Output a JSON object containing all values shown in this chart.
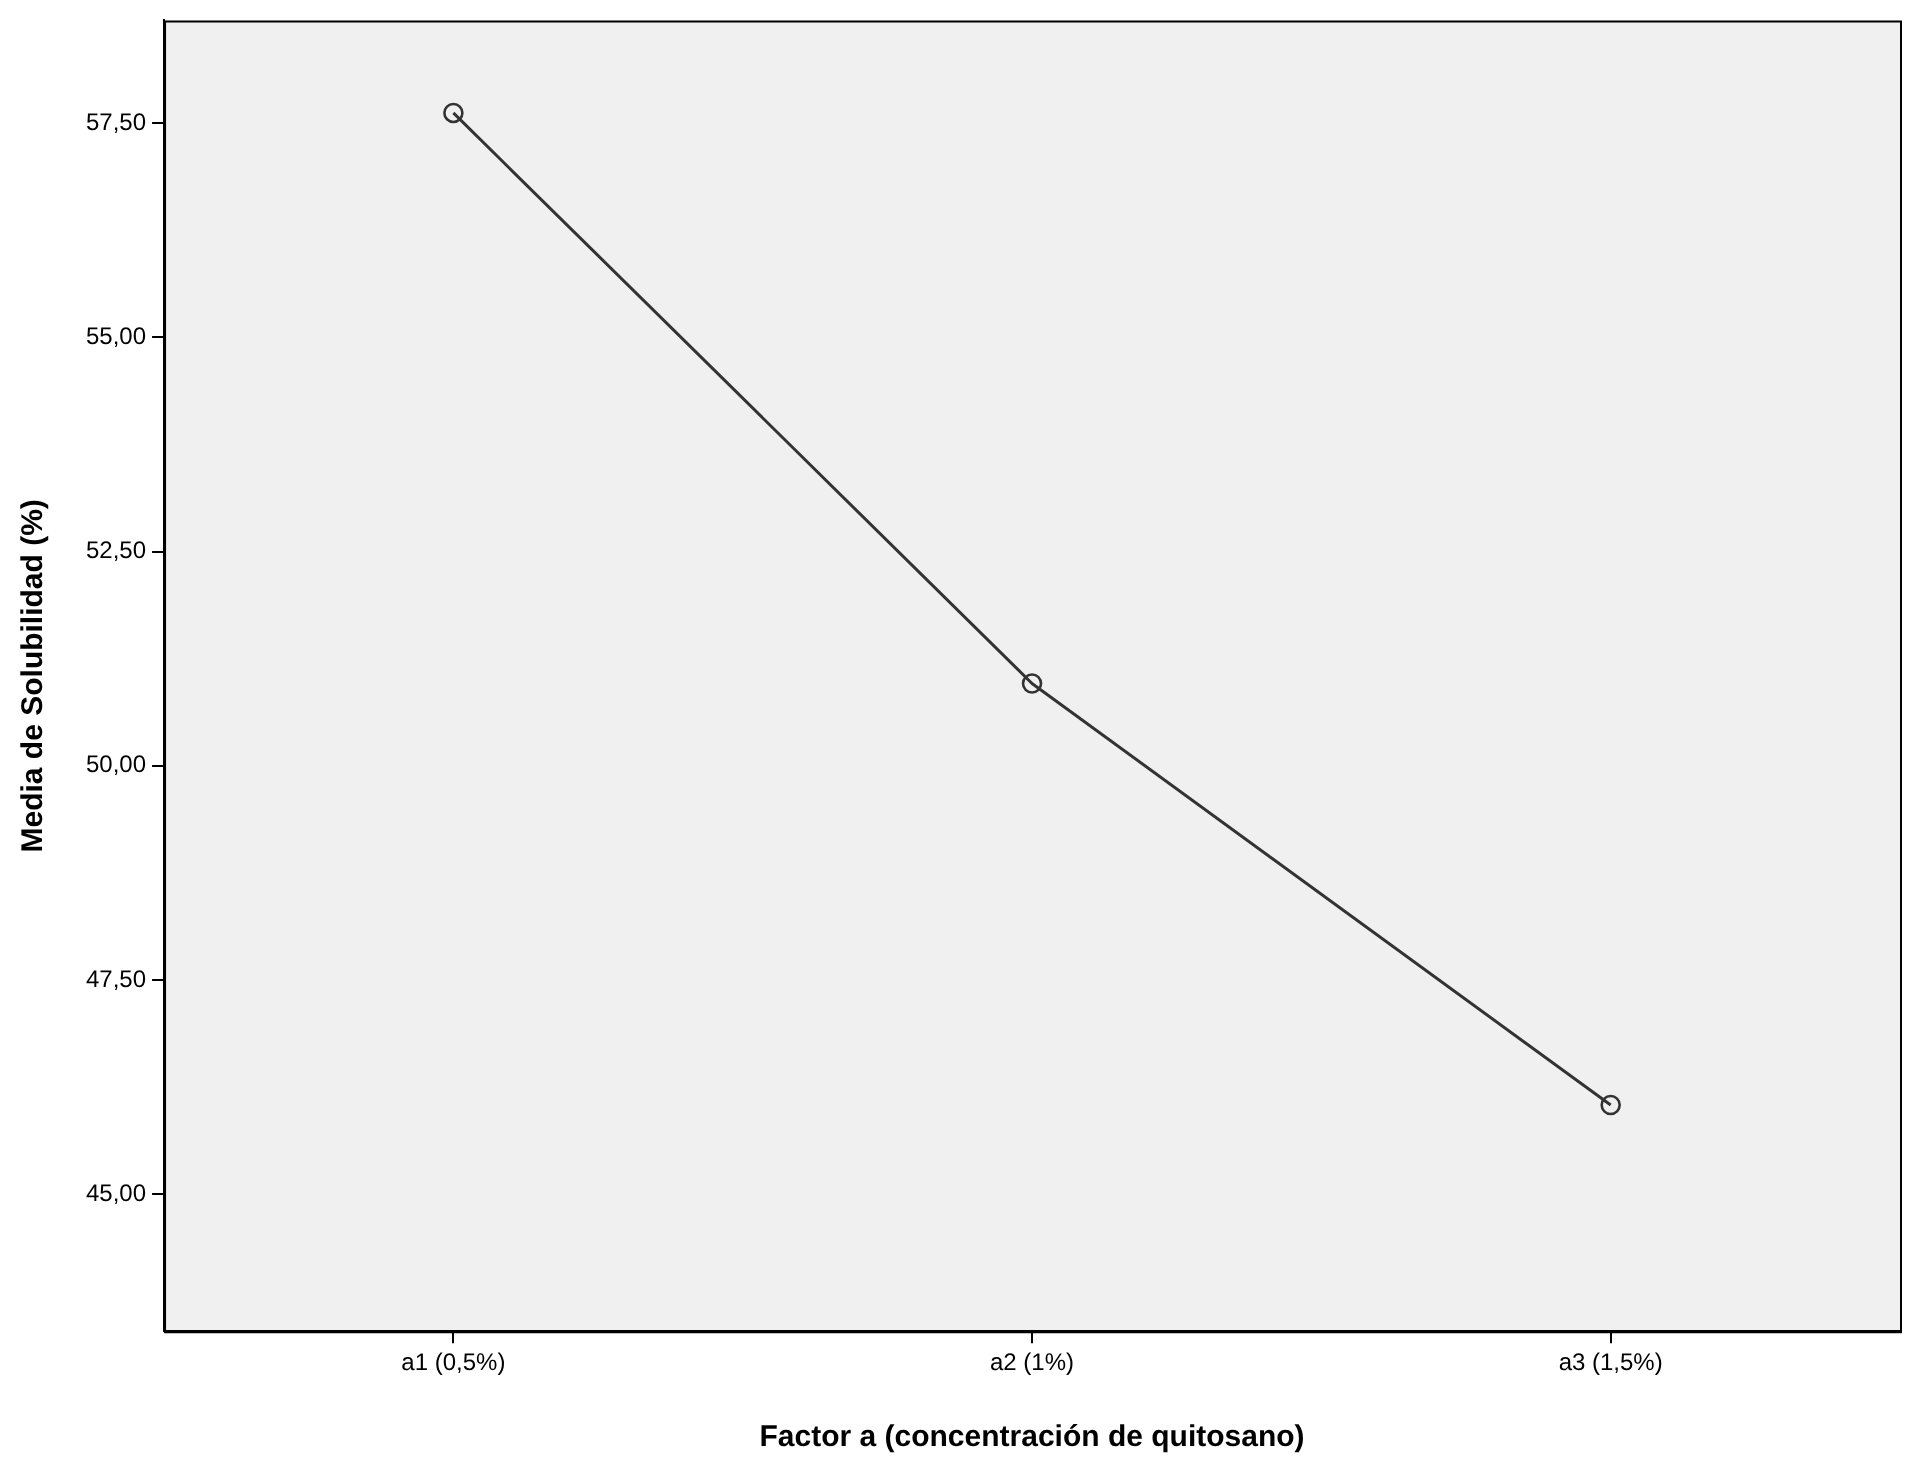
{
  "chart_data": {
    "type": "line",
    "xlabel": "Factor a (concentración de quitosano)",
    "ylabel": "Media de Solubilidad (%)",
    "categories": [
      "a1 (0,5%)",
      "a2 (1%)",
      "a3 (1,5%)"
    ],
    "series": [
      {
        "color": "#333333",
        "values": [
          57.62,
          50.96,
          46.04
        ]
      }
    ],
    "ylim": [
      43.4,
      58.7
    ],
    "yticks": [
      {
        "value": 45,
        "label": "45,00"
      },
      {
        "value": 47.5,
        "label": "47,50"
      },
      {
        "value": 50,
        "label": "50,00"
      },
      {
        "value": 52.5,
        "label": "52,50"
      },
      {
        "value": 55,
        "label": "55,00"
      },
      {
        "value": 57.5,
        "label": "57,50"
      }
    ],
    "grid": false,
    "legend": false,
    "marker": "circle",
    "line_style": "solid"
  }
}
